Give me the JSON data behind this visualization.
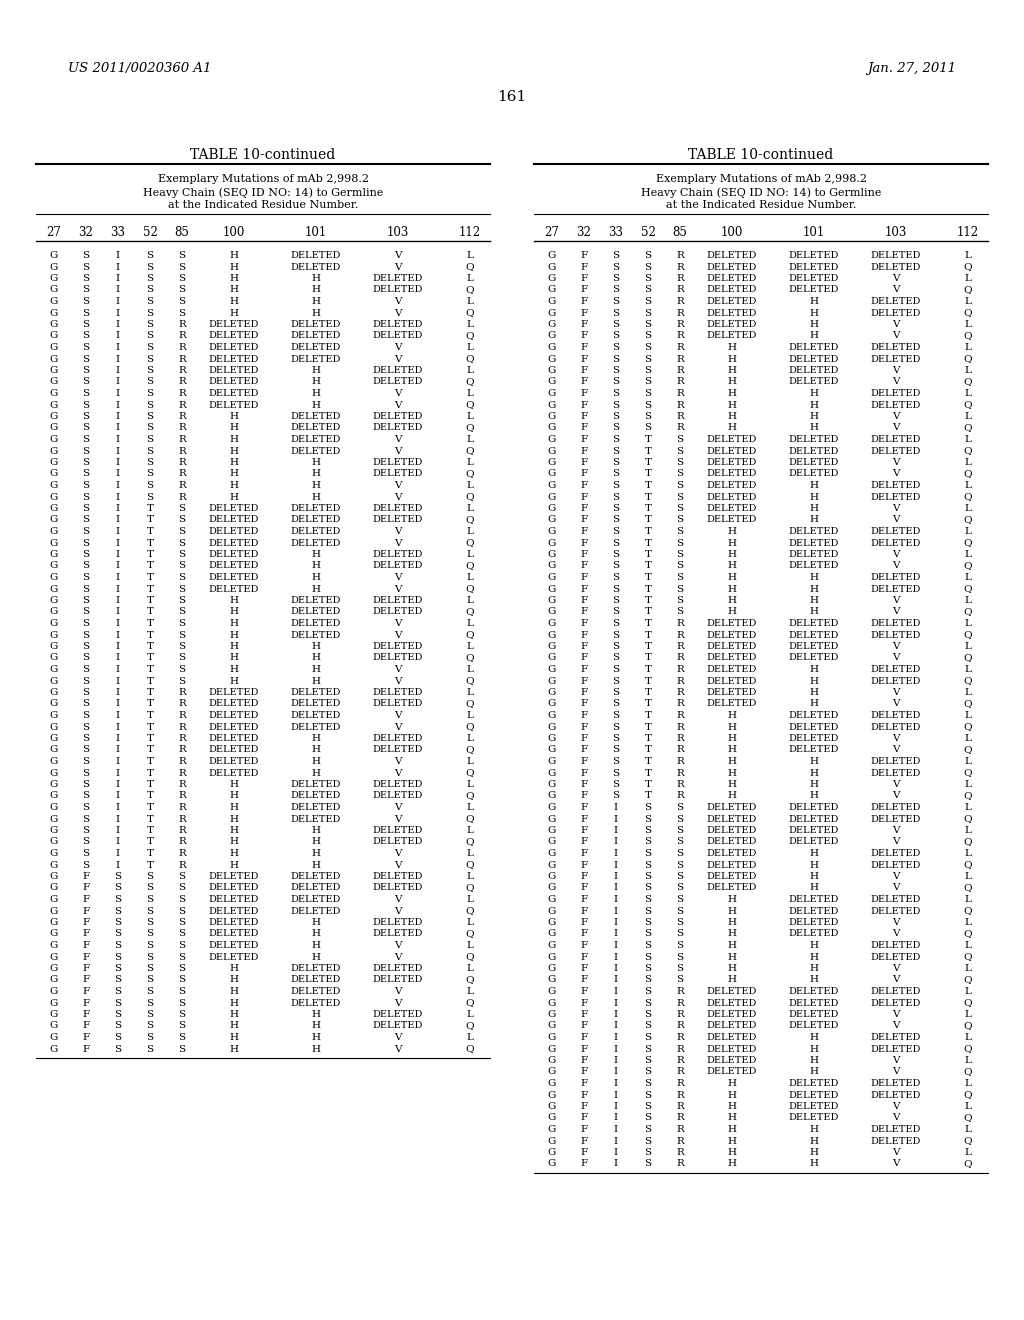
{
  "page_number": "161",
  "patent_left": "US 2011/0020360 A1",
  "patent_right": "Jan. 27, 2011",
  "table_title": "TABLE 10-continued",
  "table_subtitle1": "Exemplary Mutations of mAb 2,998.2",
  "table_subtitle2": "Heavy Chain (SEQ ID NO: 14) to Germline",
  "table_subtitle3": "at the Indicated Residue Number.",
  "col_headers": [
    "27",
    "32",
    "33",
    "52",
    "85",
    "100",
    "101",
    "103",
    "112"
  ],
  "left_data": [
    [
      "G",
      "S",
      "I",
      "S",
      "S",
      "H",
      "DELETED",
      "V",
      "L"
    ],
    [
      "G",
      "S",
      "I",
      "S",
      "S",
      "H",
      "DELETED",
      "V",
      "Q"
    ],
    [
      "G",
      "S",
      "I",
      "S",
      "S",
      "H",
      "H",
      "DELETED",
      "L"
    ],
    [
      "G",
      "S",
      "I",
      "S",
      "S",
      "H",
      "H",
      "DELETED",
      "Q"
    ],
    [
      "G",
      "S",
      "I",
      "S",
      "S",
      "H",
      "H",
      "V",
      "L"
    ],
    [
      "G",
      "S",
      "I",
      "S",
      "S",
      "H",
      "H",
      "V",
      "Q"
    ],
    [
      "G",
      "S",
      "I",
      "S",
      "R",
      "DELETED",
      "DELETED",
      "DELETED",
      "L"
    ],
    [
      "G",
      "S",
      "I",
      "S",
      "R",
      "DELETED",
      "DELETED",
      "DELETED",
      "Q"
    ],
    [
      "G",
      "S",
      "I",
      "S",
      "R",
      "DELETED",
      "DELETED",
      "V",
      "L"
    ],
    [
      "G",
      "S",
      "I",
      "S",
      "R",
      "DELETED",
      "DELETED",
      "V",
      "Q"
    ],
    [
      "G",
      "S",
      "I",
      "S",
      "R",
      "DELETED",
      "H",
      "DELETED",
      "L"
    ],
    [
      "G",
      "S",
      "I",
      "S",
      "R",
      "DELETED",
      "H",
      "DELETED",
      "Q"
    ],
    [
      "G",
      "S",
      "I",
      "S",
      "R",
      "DELETED",
      "H",
      "V",
      "L"
    ],
    [
      "G",
      "S",
      "I",
      "S",
      "R",
      "DELETED",
      "H",
      "V",
      "Q"
    ],
    [
      "G",
      "S",
      "I",
      "S",
      "R",
      "H",
      "DELETED",
      "DELETED",
      "L"
    ],
    [
      "G",
      "S",
      "I",
      "S",
      "R",
      "H",
      "DELETED",
      "DELETED",
      "Q"
    ],
    [
      "G",
      "S",
      "I",
      "S",
      "R",
      "H",
      "DELETED",
      "V",
      "L"
    ],
    [
      "G",
      "S",
      "I",
      "S",
      "R",
      "H",
      "DELETED",
      "V",
      "Q"
    ],
    [
      "G",
      "S",
      "I",
      "S",
      "R",
      "H",
      "H",
      "DELETED",
      "L"
    ],
    [
      "G",
      "S",
      "I",
      "S",
      "R",
      "H",
      "H",
      "DELETED",
      "Q"
    ],
    [
      "G",
      "S",
      "I",
      "S",
      "R",
      "H",
      "H",
      "V",
      "L"
    ],
    [
      "G",
      "S",
      "I",
      "S",
      "R",
      "H",
      "H",
      "V",
      "Q"
    ],
    [
      "G",
      "S",
      "I",
      "T",
      "S",
      "DELETED",
      "DELETED",
      "DELETED",
      "L"
    ],
    [
      "G",
      "S",
      "I",
      "T",
      "S",
      "DELETED",
      "DELETED",
      "DELETED",
      "Q"
    ],
    [
      "G",
      "S",
      "I",
      "T",
      "S",
      "DELETED",
      "DELETED",
      "V",
      "L"
    ],
    [
      "G",
      "S",
      "I",
      "T",
      "S",
      "DELETED",
      "DELETED",
      "V",
      "Q"
    ],
    [
      "G",
      "S",
      "I",
      "T",
      "S",
      "DELETED",
      "H",
      "DELETED",
      "L"
    ],
    [
      "G",
      "S",
      "I",
      "T",
      "S",
      "DELETED",
      "H",
      "DELETED",
      "Q"
    ],
    [
      "G",
      "S",
      "I",
      "T",
      "S",
      "DELETED",
      "H",
      "V",
      "L"
    ],
    [
      "G",
      "S",
      "I",
      "T",
      "S",
      "DELETED",
      "H",
      "V",
      "Q"
    ],
    [
      "G",
      "S",
      "I",
      "T",
      "S",
      "H",
      "DELETED",
      "DELETED",
      "L"
    ],
    [
      "G",
      "S",
      "I",
      "T",
      "S",
      "H",
      "DELETED",
      "DELETED",
      "Q"
    ],
    [
      "G",
      "S",
      "I",
      "T",
      "S",
      "H",
      "DELETED",
      "V",
      "L"
    ],
    [
      "G",
      "S",
      "I",
      "T",
      "S",
      "H",
      "DELETED",
      "V",
      "Q"
    ],
    [
      "G",
      "S",
      "I",
      "T",
      "S",
      "H",
      "H",
      "DELETED",
      "L"
    ],
    [
      "G",
      "S",
      "I",
      "T",
      "S",
      "H",
      "H",
      "DELETED",
      "Q"
    ],
    [
      "G",
      "S",
      "I",
      "T",
      "S",
      "H",
      "H",
      "V",
      "L"
    ],
    [
      "G",
      "S",
      "I",
      "T",
      "S",
      "H",
      "H",
      "V",
      "Q"
    ],
    [
      "G",
      "S",
      "I",
      "T",
      "R",
      "DELETED",
      "DELETED",
      "DELETED",
      "L"
    ],
    [
      "G",
      "S",
      "I",
      "T",
      "R",
      "DELETED",
      "DELETED",
      "DELETED",
      "Q"
    ],
    [
      "G",
      "S",
      "I",
      "T",
      "R",
      "DELETED",
      "DELETED",
      "V",
      "L"
    ],
    [
      "G",
      "S",
      "I",
      "T",
      "R",
      "DELETED",
      "DELETED",
      "V",
      "Q"
    ],
    [
      "G",
      "S",
      "I",
      "T",
      "R",
      "DELETED",
      "H",
      "DELETED",
      "L"
    ],
    [
      "G",
      "S",
      "I",
      "T",
      "R",
      "DELETED",
      "H",
      "DELETED",
      "Q"
    ],
    [
      "G",
      "S",
      "I",
      "T",
      "R",
      "DELETED",
      "H",
      "V",
      "L"
    ],
    [
      "G",
      "S",
      "I",
      "T",
      "R",
      "DELETED",
      "H",
      "V",
      "Q"
    ],
    [
      "G",
      "S",
      "I",
      "T",
      "R",
      "H",
      "DELETED",
      "DELETED",
      "L"
    ],
    [
      "G",
      "S",
      "I",
      "T",
      "R",
      "H",
      "DELETED",
      "DELETED",
      "Q"
    ],
    [
      "G",
      "S",
      "I",
      "T",
      "R",
      "H",
      "DELETED",
      "V",
      "L"
    ],
    [
      "G",
      "S",
      "I",
      "T",
      "R",
      "H",
      "DELETED",
      "V",
      "Q"
    ],
    [
      "G",
      "S",
      "I",
      "T",
      "R",
      "H",
      "H",
      "DELETED",
      "L"
    ],
    [
      "G",
      "S",
      "I",
      "T",
      "R",
      "H",
      "H",
      "DELETED",
      "Q"
    ],
    [
      "G",
      "S",
      "I",
      "T",
      "R",
      "H",
      "H",
      "V",
      "L"
    ],
    [
      "G",
      "S",
      "I",
      "T",
      "R",
      "H",
      "H",
      "V",
      "Q"
    ],
    [
      "G",
      "F",
      "S",
      "S",
      "S",
      "DELETED",
      "DELETED",
      "DELETED",
      "L"
    ],
    [
      "G",
      "F",
      "S",
      "S",
      "S",
      "DELETED",
      "DELETED",
      "DELETED",
      "Q"
    ],
    [
      "G",
      "F",
      "S",
      "S",
      "S",
      "DELETED",
      "DELETED",
      "V",
      "L"
    ],
    [
      "G",
      "F",
      "S",
      "S",
      "S",
      "DELETED",
      "DELETED",
      "V",
      "Q"
    ],
    [
      "G",
      "F",
      "S",
      "S",
      "S",
      "DELETED",
      "H",
      "DELETED",
      "L"
    ],
    [
      "G",
      "F",
      "S",
      "S",
      "S",
      "DELETED",
      "H",
      "DELETED",
      "Q"
    ],
    [
      "G",
      "F",
      "S",
      "S",
      "S",
      "DELETED",
      "H",
      "V",
      "L"
    ],
    [
      "G",
      "F",
      "S",
      "S",
      "S",
      "DELETED",
      "H",
      "V",
      "Q"
    ],
    [
      "G",
      "F",
      "S",
      "S",
      "S",
      "H",
      "DELETED",
      "DELETED",
      "L"
    ],
    [
      "G",
      "F",
      "S",
      "S",
      "S",
      "H",
      "DELETED",
      "DELETED",
      "Q"
    ],
    [
      "G",
      "F",
      "S",
      "S",
      "S",
      "H",
      "DELETED",
      "V",
      "L"
    ],
    [
      "G",
      "F",
      "S",
      "S",
      "S",
      "H",
      "DELETED",
      "V",
      "Q"
    ],
    [
      "G",
      "F",
      "S",
      "S",
      "S",
      "H",
      "H",
      "DELETED",
      "L"
    ],
    [
      "G",
      "F",
      "S",
      "S",
      "S",
      "H",
      "H",
      "DELETED",
      "Q"
    ],
    [
      "G",
      "F",
      "S",
      "S",
      "S",
      "H",
      "H",
      "V",
      "L"
    ],
    [
      "G",
      "F",
      "S",
      "S",
      "S",
      "H",
      "H",
      "V",
      "Q"
    ]
  ],
  "right_data": [
    [
      "G",
      "F",
      "S",
      "S",
      "R",
      "DELETED",
      "DELETED",
      "DELETED",
      "L"
    ],
    [
      "G",
      "F",
      "S",
      "S",
      "R",
      "DELETED",
      "DELETED",
      "DELETED",
      "Q"
    ],
    [
      "G",
      "F",
      "S",
      "S",
      "R",
      "DELETED",
      "DELETED",
      "V",
      "L"
    ],
    [
      "G",
      "F",
      "S",
      "S",
      "R",
      "DELETED",
      "DELETED",
      "V",
      "Q"
    ],
    [
      "G",
      "F",
      "S",
      "S",
      "R",
      "DELETED",
      "H",
      "DELETED",
      "L"
    ],
    [
      "G",
      "F",
      "S",
      "S",
      "R",
      "DELETED",
      "H",
      "DELETED",
      "Q"
    ],
    [
      "G",
      "F",
      "S",
      "S",
      "R",
      "DELETED",
      "H",
      "V",
      "L"
    ],
    [
      "G",
      "F",
      "S",
      "S",
      "R",
      "DELETED",
      "H",
      "V",
      "Q"
    ],
    [
      "G",
      "F",
      "S",
      "S",
      "R",
      "H",
      "DELETED",
      "DELETED",
      "L"
    ],
    [
      "G",
      "F",
      "S",
      "S",
      "R",
      "H",
      "DELETED",
      "DELETED",
      "Q"
    ],
    [
      "G",
      "F",
      "S",
      "S",
      "R",
      "H",
      "DELETED",
      "V",
      "L"
    ],
    [
      "G",
      "F",
      "S",
      "S",
      "R",
      "H",
      "DELETED",
      "V",
      "Q"
    ],
    [
      "G",
      "F",
      "S",
      "S",
      "R",
      "H",
      "H",
      "DELETED",
      "L"
    ],
    [
      "G",
      "F",
      "S",
      "S",
      "R",
      "H",
      "H",
      "DELETED",
      "Q"
    ],
    [
      "G",
      "F",
      "S",
      "S",
      "R",
      "H",
      "H",
      "V",
      "L"
    ],
    [
      "G",
      "F",
      "S",
      "S",
      "R",
      "H",
      "H",
      "V",
      "Q"
    ],
    [
      "G",
      "F",
      "S",
      "T",
      "S",
      "DELETED",
      "DELETED",
      "DELETED",
      "L"
    ],
    [
      "G",
      "F",
      "S",
      "T",
      "S",
      "DELETED",
      "DELETED",
      "DELETED",
      "Q"
    ],
    [
      "G",
      "F",
      "S",
      "T",
      "S",
      "DELETED",
      "DELETED",
      "V",
      "L"
    ],
    [
      "G",
      "F",
      "S",
      "T",
      "S",
      "DELETED",
      "DELETED",
      "V",
      "Q"
    ],
    [
      "G",
      "F",
      "S",
      "T",
      "S",
      "DELETED",
      "H",
      "DELETED",
      "L"
    ],
    [
      "G",
      "F",
      "S",
      "T",
      "S",
      "DELETED",
      "H",
      "DELETED",
      "Q"
    ],
    [
      "G",
      "F",
      "S",
      "T",
      "S",
      "DELETED",
      "H",
      "V",
      "L"
    ],
    [
      "G",
      "F",
      "S",
      "T",
      "S",
      "DELETED",
      "H",
      "V",
      "Q"
    ],
    [
      "G",
      "F",
      "S",
      "T",
      "S",
      "H",
      "DELETED",
      "DELETED",
      "L"
    ],
    [
      "G",
      "F",
      "S",
      "T",
      "S",
      "H",
      "DELETED",
      "DELETED",
      "Q"
    ],
    [
      "G",
      "F",
      "S",
      "T",
      "S",
      "H",
      "DELETED",
      "V",
      "L"
    ],
    [
      "G",
      "F",
      "S",
      "T",
      "S",
      "H",
      "DELETED",
      "V",
      "Q"
    ],
    [
      "G",
      "F",
      "S",
      "T",
      "S",
      "H",
      "H",
      "DELETED",
      "L"
    ],
    [
      "G",
      "F",
      "S",
      "T",
      "S",
      "H",
      "H",
      "DELETED",
      "Q"
    ],
    [
      "G",
      "F",
      "S",
      "T",
      "S",
      "H",
      "H",
      "V",
      "L"
    ],
    [
      "G",
      "F",
      "S",
      "T",
      "S",
      "H",
      "H",
      "V",
      "Q"
    ],
    [
      "G",
      "F",
      "S",
      "T",
      "R",
      "DELETED",
      "DELETED",
      "DELETED",
      "L"
    ],
    [
      "G",
      "F",
      "S",
      "T",
      "R",
      "DELETED",
      "DELETED",
      "DELETED",
      "Q"
    ],
    [
      "G",
      "F",
      "S",
      "T",
      "R",
      "DELETED",
      "DELETED",
      "V",
      "L"
    ],
    [
      "G",
      "F",
      "S",
      "T",
      "R",
      "DELETED",
      "DELETED",
      "V",
      "Q"
    ],
    [
      "G",
      "F",
      "S",
      "T",
      "R",
      "DELETED",
      "H",
      "DELETED",
      "L"
    ],
    [
      "G",
      "F",
      "S",
      "T",
      "R",
      "DELETED",
      "H",
      "DELETED",
      "Q"
    ],
    [
      "G",
      "F",
      "S",
      "T",
      "R",
      "DELETED",
      "H",
      "V",
      "L"
    ],
    [
      "G",
      "F",
      "S",
      "T",
      "R",
      "DELETED",
      "H",
      "V",
      "Q"
    ],
    [
      "G",
      "F",
      "S",
      "T",
      "R",
      "H",
      "DELETED",
      "DELETED",
      "L"
    ],
    [
      "G",
      "F",
      "S",
      "T",
      "R",
      "H",
      "DELETED",
      "DELETED",
      "Q"
    ],
    [
      "G",
      "F",
      "S",
      "T",
      "R",
      "H",
      "DELETED",
      "V",
      "L"
    ],
    [
      "G",
      "F",
      "S",
      "T",
      "R",
      "H",
      "DELETED",
      "V",
      "Q"
    ],
    [
      "G",
      "F",
      "S",
      "T",
      "R",
      "H",
      "H",
      "DELETED",
      "L"
    ],
    [
      "G",
      "F",
      "S",
      "T",
      "R",
      "H",
      "H",
      "DELETED",
      "Q"
    ],
    [
      "G",
      "F",
      "S",
      "T",
      "R",
      "H",
      "H",
      "V",
      "L"
    ],
    [
      "G",
      "F",
      "S",
      "T",
      "R",
      "H",
      "H",
      "V",
      "Q"
    ],
    [
      "G",
      "F",
      "I",
      "S",
      "S",
      "DELETED",
      "DELETED",
      "DELETED",
      "L"
    ],
    [
      "G",
      "F",
      "I",
      "S",
      "S",
      "DELETED",
      "DELETED",
      "DELETED",
      "Q"
    ],
    [
      "G",
      "F",
      "I",
      "S",
      "S",
      "DELETED",
      "DELETED",
      "V",
      "L"
    ],
    [
      "G",
      "F",
      "I",
      "S",
      "S",
      "DELETED",
      "DELETED",
      "V",
      "Q"
    ],
    [
      "G",
      "F",
      "I",
      "S",
      "S",
      "DELETED",
      "H",
      "DELETED",
      "L"
    ],
    [
      "G",
      "F",
      "I",
      "S",
      "S",
      "DELETED",
      "H",
      "DELETED",
      "Q"
    ],
    [
      "G",
      "F",
      "I",
      "S",
      "S",
      "DELETED",
      "H",
      "V",
      "L"
    ],
    [
      "G",
      "F",
      "I",
      "S",
      "S",
      "DELETED",
      "H",
      "V",
      "Q"
    ],
    [
      "G",
      "F",
      "I",
      "S",
      "S",
      "H",
      "DELETED",
      "DELETED",
      "L"
    ],
    [
      "G",
      "F",
      "I",
      "S",
      "S",
      "H",
      "DELETED",
      "DELETED",
      "Q"
    ],
    [
      "G",
      "F",
      "I",
      "S",
      "S",
      "H",
      "DELETED",
      "V",
      "L"
    ],
    [
      "G",
      "F",
      "I",
      "S",
      "S",
      "H",
      "DELETED",
      "V",
      "Q"
    ],
    [
      "G",
      "F",
      "I",
      "S",
      "S",
      "H",
      "H",
      "DELETED",
      "L"
    ],
    [
      "G",
      "F",
      "I",
      "S",
      "S",
      "H",
      "H",
      "DELETED",
      "Q"
    ],
    [
      "G",
      "F",
      "I",
      "S",
      "S",
      "H",
      "H",
      "V",
      "L"
    ],
    [
      "G",
      "F",
      "I",
      "S",
      "S",
      "H",
      "H",
      "V",
      "Q"
    ],
    [
      "G",
      "F",
      "I",
      "S",
      "R",
      "DELETED",
      "DELETED",
      "DELETED",
      "L"
    ],
    [
      "G",
      "F",
      "I",
      "S",
      "R",
      "DELETED",
      "DELETED",
      "DELETED",
      "Q"
    ],
    [
      "G",
      "F",
      "I",
      "S",
      "R",
      "DELETED",
      "DELETED",
      "V",
      "L"
    ],
    [
      "G",
      "F",
      "I",
      "S",
      "R",
      "DELETED",
      "DELETED",
      "V",
      "Q"
    ],
    [
      "G",
      "F",
      "I",
      "S",
      "R",
      "DELETED",
      "H",
      "DELETED",
      "L"
    ],
    [
      "G",
      "F",
      "I",
      "S",
      "R",
      "DELETED",
      "H",
      "DELETED",
      "Q"
    ],
    [
      "G",
      "F",
      "I",
      "S",
      "R",
      "DELETED",
      "H",
      "V",
      "L"
    ],
    [
      "G",
      "F",
      "I",
      "S",
      "R",
      "DELETED",
      "H",
      "V",
      "Q"
    ],
    [
      "G",
      "F",
      "I",
      "S",
      "R",
      "H",
      "DELETED",
      "DELETED",
      "L"
    ],
    [
      "G",
      "F",
      "I",
      "S",
      "R",
      "H",
      "DELETED",
      "DELETED",
      "Q"
    ],
    [
      "G",
      "F",
      "I",
      "S",
      "R",
      "H",
      "DELETED",
      "V",
      "L"
    ],
    [
      "G",
      "F",
      "I",
      "S",
      "R",
      "H",
      "DELETED",
      "V",
      "Q"
    ],
    [
      "G",
      "F",
      "I",
      "S",
      "R",
      "H",
      "H",
      "DELETED",
      "L"
    ],
    [
      "G",
      "F",
      "I",
      "S",
      "R",
      "H",
      "H",
      "DELETED",
      "Q"
    ],
    [
      "G",
      "F",
      "I",
      "S",
      "R",
      "H",
      "H",
      "V",
      "L"
    ],
    [
      "G",
      "F",
      "I",
      "S",
      "R",
      "H",
      "H",
      "V",
      "Q"
    ]
  ]
}
